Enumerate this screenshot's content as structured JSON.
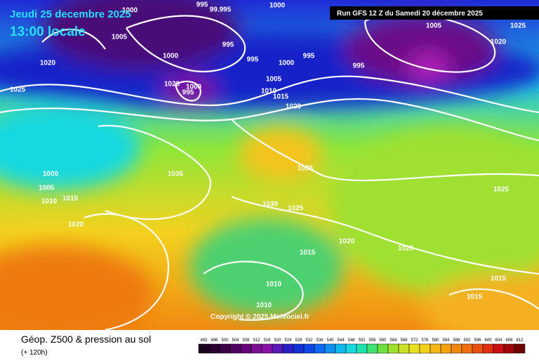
{
  "header": {
    "date": "Jeudi 25 decembre 2025",
    "time": "13:00 locale",
    "run": "Run GFS 12 Z du Samedi 20 décembre 2025"
  },
  "copyright": "Copyright © 2025 Meteociel.fr",
  "footer": {
    "title": "Géop. Z500 & pression au sol",
    "lead": "(+ 120h)"
  },
  "legend": {
    "levels": [
      492,
      496,
      500,
      504,
      508,
      512,
      516,
      520,
      524,
      528,
      532,
      536,
      540,
      544,
      548,
      552,
      556,
      560,
      564,
      568,
      572,
      576,
      580,
      584,
      588,
      592,
      596,
      600,
      604,
      608,
      612
    ]
  },
  "isobars": [
    "1000",
    "995",
    "99.995",
    "1000",
    "1005",
    "1000",
    "995",
    "995",
    "995",
    "1005",
    "1020",
    "1025",
    "995",
    "1020",
    "1025",
    "1020",
    "995",
    "1000",
    "1000",
    "1005",
    "1010",
    "1015",
    "1020",
    "1035",
    "1035",
    "1000",
    "1005",
    "1010",
    "1015",
    "1020",
    "1030",
    "1025",
    "1025",
    "1020",
    "1020",
    "1015",
    "1010",
    "1010",
    "1015",
    "1015"
  ]
}
